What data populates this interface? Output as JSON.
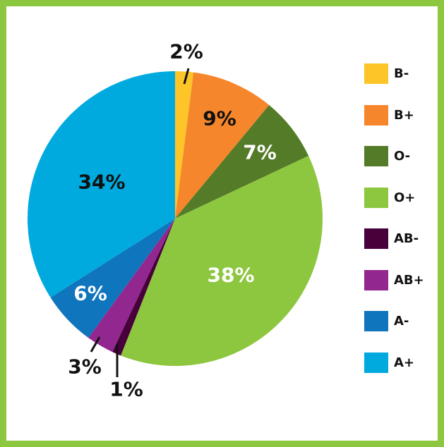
{
  "chart_data": {
    "type": "pie",
    "title": "",
    "slices": [
      {
        "name": "B-",
        "value": 2,
        "label": "2%",
        "color": "#fdc528",
        "label_color": "#111111"
      },
      {
        "name": "B+",
        "value": 9,
        "label": "9%",
        "color": "#f6862b",
        "label_color": "#111111"
      },
      {
        "name": "O-",
        "value": 7,
        "label": "7%",
        "color": "#547b27",
        "label_color": "#ffffff"
      },
      {
        "name": "O+",
        "value": 38,
        "label": "38%",
        "color": "#8dc63f",
        "label_color": "#ffffff"
      },
      {
        "name": "AB-",
        "value": 1,
        "label": "1%",
        "color": "#47003a",
        "label_color": "#111111"
      },
      {
        "name": "AB+",
        "value": 3,
        "label": "3%",
        "color": "#92278f",
        "label_color": "#111111"
      },
      {
        "name": "A-",
        "value": 6,
        "label": "6%",
        "color": "#0f75bc",
        "label_color": "#ffffff"
      },
      {
        "name": "A+",
        "value": 34,
        "label": "34%",
        "color": "#00aadf",
        "label_color": "#111111"
      }
    ],
    "legend_position": "right",
    "border_color": "#8dc63f"
  }
}
